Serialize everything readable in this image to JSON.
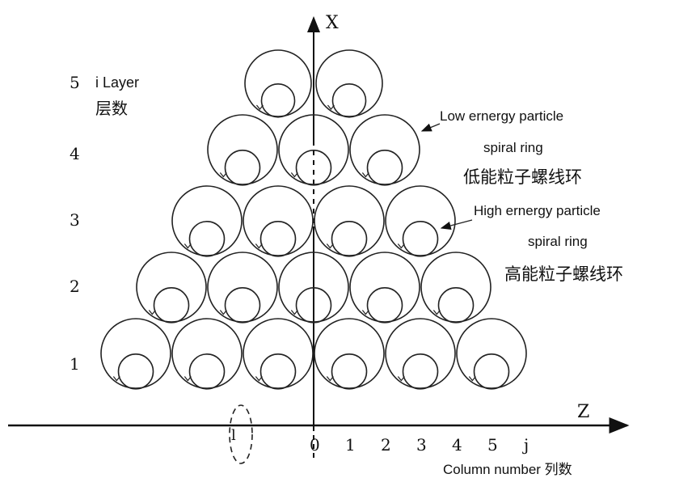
{
  "axes": {
    "x_label": "X",
    "z_label": "Z",
    "ticks": [
      "0",
      "1",
      "2",
      "3",
      "4",
      "5",
      "j"
    ],
    "left_mark": "l"
  },
  "layers": {
    "top_label": "5",
    "i_label": "i Layer",
    "cn_label": "层数",
    "numbers": [
      "4",
      "3",
      "2",
      "1"
    ]
  },
  "annotations": {
    "low_en_line1": "Low ernergy particle",
    "low_en_line2": "spiral ring",
    "low_cn": "低能粒子螺线环",
    "high_en_line1": "High ernergy particle",
    "high_en_line2": "spiral ring",
    "high_cn": "高能粒子螺线环"
  },
  "footer": {
    "column_label": "Column number 列数"
  },
  "rows": [
    {
      "layer": 1,
      "rings": 6
    },
    {
      "layer": 2,
      "rings": 5
    },
    {
      "layer": 3,
      "rings": 4
    },
    {
      "layer": 4,
      "rings": 3
    },
    {
      "layer": 5,
      "rings": 2
    }
  ],
  "colors": {
    "ink": "#222222",
    "axis": "#111111"
  }
}
